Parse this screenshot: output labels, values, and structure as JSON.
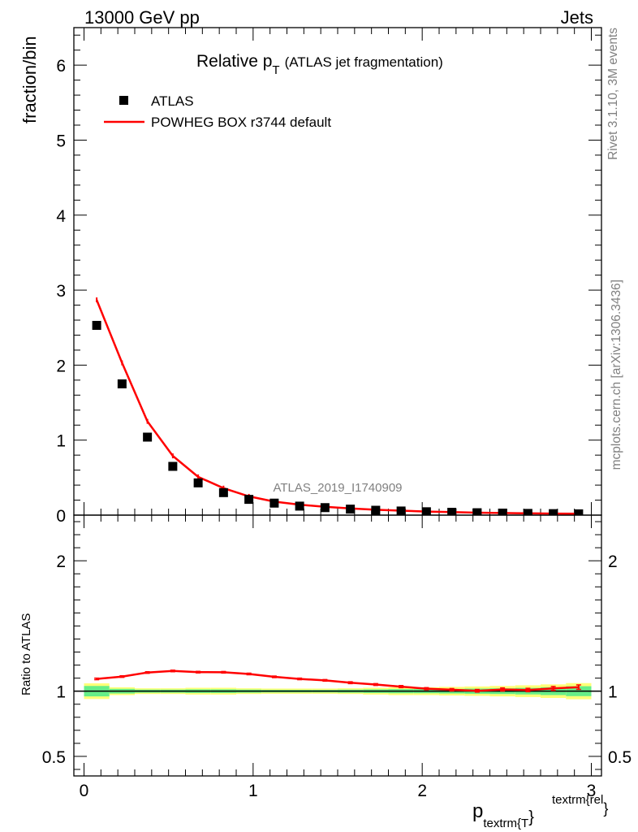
{
  "header": {
    "left": "13000 GeV pp",
    "right": "Jets"
  },
  "side_labels": {
    "rivet": "Rivet 3.1.10,  3M events",
    "mcplots": "mcplots.cern.ch [arXiv:1306.3436]"
  },
  "title": {
    "main": "Relative p",
    "sub": "T",
    "suffix": "(ATLAS jet fragmentation)"
  },
  "watermark": "ATLAS_2019_I1740909",
  "legend": {
    "data_label": "ATLAS",
    "mc_label": "POWHEG BOX r3744 default"
  },
  "colors": {
    "data": "#000000",
    "mc": "#ff0000",
    "band_inner": "#66ee88",
    "band_outer": "#ffff77"
  },
  "axes": {
    "ylabel_main": "fraction/bin",
    "ylabel_ratio": "Ratio to ATLAS",
    "xlabel_main": "p",
    "xlabel_sub": "textrm{T",
    "xlabel_close": "}",
    "xlabel_sup": "textrm{rel",
    "xlabel_sup_close": "}"
  },
  "chart_data": [
    {
      "type": "scatter",
      "panel": "main",
      "xlim": [
        -0.06,
        3.06
      ],
      "ylim": [
        0,
        6.5
      ],
      "yticks": [
        0,
        1,
        2,
        3,
        4,
        5,
        6
      ],
      "ytick_labels": [
        "0",
        "1",
        "2",
        "3",
        "4",
        "5",
        "6"
      ],
      "series": [
        {
          "name": "ATLAS",
          "kind": "markers",
          "x": [
            0.075,
            0.225,
            0.375,
            0.525,
            0.675,
            0.825,
            0.975,
            1.125,
            1.275,
            1.425,
            1.575,
            1.725,
            1.875,
            2.025,
            2.175,
            2.325,
            2.475,
            2.625,
            2.775,
            2.925
          ],
          "y": [
            2.53,
            1.75,
            1.04,
            0.65,
            0.43,
            0.3,
            0.21,
            0.16,
            0.12,
            0.1,
            0.08,
            0.065,
            0.055,
            0.045,
            0.038,
            0.032,
            0.027,
            0.023,
            0.02,
            0.017
          ]
        },
        {
          "name": "POWHEG BOX r3744 default",
          "kind": "line",
          "x": [
            0.075,
            0.225,
            0.375,
            0.525,
            0.675,
            0.825,
            0.975,
            1.125,
            1.275,
            1.425,
            1.575,
            1.725,
            1.875,
            2.025,
            2.175,
            2.325,
            2.475,
            2.625,
            2.775,
            2.925
          ],
          "y": [
            2.87,
            2.03,
            1.25,
            0.79,
            0.51,
            0.36,
            0.25,
            0.18,
            0.14,
            0.11,
            0.09,
            0.072,
            0.06,
            0.048,
            0.04,
            0.033,
            0.028,
            0.024,
            0.021,
            0.018
          ]
        }
      ]
    },
    {
      "type": "line",
      "panel": "ratio",
      "xlim": [
        -0.06,
        3.06
      ],
      "ylim": [
        0.35,
        2.35
      ],
      "yticks": [
        0.5,
        1,
        2
      ],
      "ytick_labels": [
        "0.5",
        "1",
        "2"
      ],
      "xticks": [
        0,
        1,
        2,
        3
      ],
      "xtick_labels": [
        "0",
        "1",
        "2",
        "3"
      ],
      "x": [
        0.075,
        0.225,
        0.375,
        0.525,
        0.675,
        0.825,
        0.975,
        1.125,
        1.275,
        1.425,
        1.575,
        1.725,
        1.875,
        2.025,
        2.175,
        2.325,
        2.475,
        2.625,
        2.775,
        2.925
      ],
      "ratio": [
        1.094,
        1.112,
        1.143,
        1.155,
        1.146,
        1.145,
        1.132,
        1.11,
        1.094,
        1.083,
        1.065,
        1.051,
        1.035,
        1.019,
        1.011,
        1.003,
        1.013,
        1.009,
        1.021,
        1.031
      ],
      "ratio_err": [
        0.004,
        0.004,
        0.004,
        0.004,
        0.004,
        0.005,
        0.005,
        0.005,
        0.006,
        0.006,
        0.007,
        0.007,
        0.008,
        0.008,
        0.009,
        0.01,
        0.012,
        0.013,
        0.015,
        0.017
      ],
      "band_inner": [
        0.04,
        0.018,
        0.012,
        0.012,
        0.014,
        0.014,
        0.012,
        0.01,
        0.01,
        0.01,
        0.012,
        0.014,
        0.016,
        0.016,
        0.018,
        0.02,
        0.022,
        0.025,
        0.03,
        0.038
      ],
      "band_outer": [
        0.06,
        0.03,
        0.022,
        0.022,
        0.026,
        0.026,
        0.022,
        0.02,
        0.02,
        0.02,
        0.022,
        0.026,
        0.03,
        0.03,
        0.033,
        0.036,
        0.04,
        0.045,
        0.052,
        0.062
      ]
    }
  ]
}
